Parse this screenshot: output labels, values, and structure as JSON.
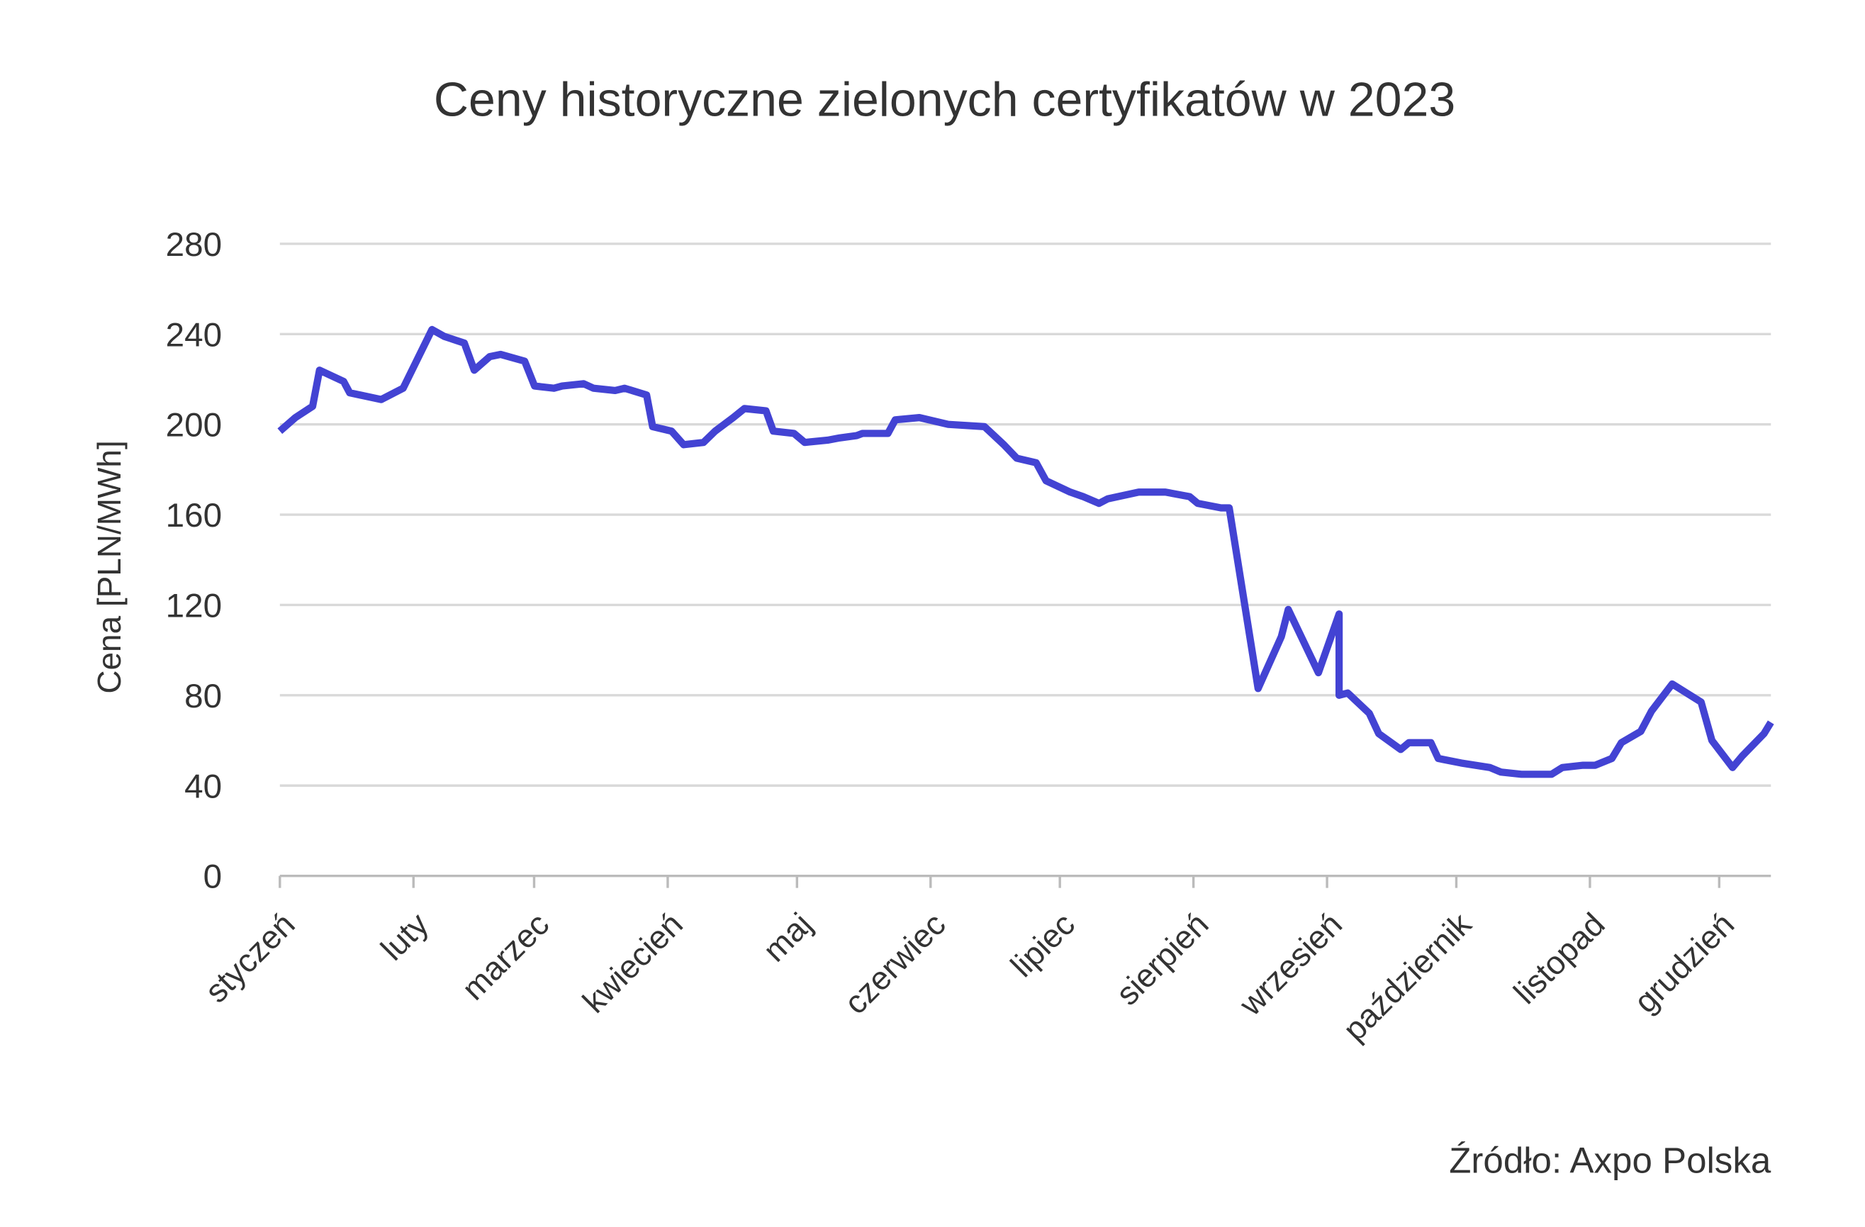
{
  "chart_data": {
    "type": "line",
    "title": "Ceny historyczne zielonych certyfikatów w 2023",
    "ylabel": "Cena [PLN/MWh]",
    "source": "Źródło: Axpo Polska",
    "x": [
      0,
      3.6,
      7.6,
      9.2,
      14.8,
      16.2,
      23.5,
      28.6,
      35.3,
      38.1,
      42.8,
      45.1,
      48.7,
      51.2,
      56.8,
      59.1,
      63.6,
      65.5,
      70.5,
      72.8,
      77.8,
      80,
      85.1,
      86.5,
      90.9,
      93.7,
      98.3,
      101,
      105.2,
      107.8,
      112.8,
      114.5,
      119.3,
      121.8,
      127.1,
      129.9,
      133.8,
      135.2,
      141.1,
      142.8,
      148.4,
      155.1,
      163.5,
      168,
      171,
      175.5,
      177.8,
      183.4,
      186.4,
      190.1,
      192.1,
      199.3,
      205.5,
      211.1,
      213,
      218.4,
      220.3,
      227,
      232.4,
      234,
      241,
      245.8,
      245.8,
      247.8,
      252.8,
      255,
      260.1,
      262,
      267.1,
      268.8,
      274.1,
      280.8,
      283.3,
      288.1,
      295.1,
      297.6,
      302.4,
      305.2,
      309.1,
      311.3,
      315.8,
      318.3,
      323.1,
      329.8,
      332.3,
      337.1,
      339.3,
      344.4,
      346
    ],
    "series": [
      {
        "name": "Cena",
        "color": "#4343d3",
        "values": [
          197,
          203,
          208,
          224,
          219,
          214,
          211,
          216,
          242,
          239,
          236,
          224,
          230,
          231,
          228,
          217,
          216,
          217,
          218,
          216,
          215,
          216,
          213,
          199,
          197,
          191,
          192,
          197,
          203,
          207,
          206,
          197,
          196,
          192,
          193,
          194,
          195,
          196,
          196,
          202,
          203,
          200,
          199,
          191,
          185,
          183,
          175,
          170,
          168,
          165,
          167,
          170,
          170,
          168,
          165,
          163,
          163,
          83,
          106,
          118,
          90,
          116,
          80,
          81,
          72,
          63,
          56,
          59,
          59,
          52,
          50,
          48,
          46,
          45,
          45,
          48,
          49,
          49,
          52,
          59,
          64,
          73,
          85,
          77,
          60,
          48,
          53,
          63,
          68
        ]
      }
    ],
    "xlim": [
      0,
      346
    ],
    "xticks": [
      {
        "value": 0,
        "label": "styczeń"
      },
      {
        "value": 31,
        "label": "luty"
      },
      {
        "value": 59,
        "label": "marzec"
      },
      {
        "value": 90,
        "label": "kwiecień"
      },
      {
        "value": 120,
        "label": "maj"
      },
      {
        "value": 151,
        "label": "czerwiec"
      },
      {
        "value": 181,
        "label": "lipiec"
      },
      {
        "value": 212,
        "label": "sierpień"
      },
      {
        "value": 243,
        "label": "wrzesień"
      },
      {
        "value": 273,
        "label": "październik"
      },
      {
        "value": 304,
        "label": "listopad"
      },
      {
        "value": 334,
        "label": "grudzień"
      }
    ],
    "ylim": [
      0,
      280
    ],
    "yticks": [
      0,
      40,
      80,
      120,
      160,
      200,
      240,
      280
    ],
    "grid": true
  }
}
